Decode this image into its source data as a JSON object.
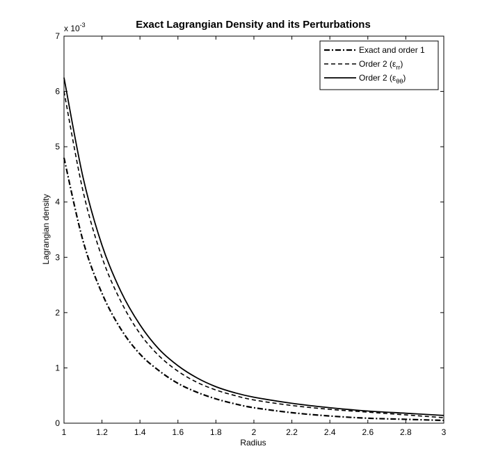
{
  "chart_data": {
    "type": "line",
    "title": "Exact Lagrangian Density and its Perturbations",
    "xlabel": "Radius",
    "ylabel": "Lagrangian density",
    "y_multiplier": "x 10",
    "y_multiplier_exponent": "-3",
    "xlim": [
      1,
      3
    ],
    "ylim": [
      0,
      7
    ],
    "xticks": [
      "1",
      "1.2",
      "1.4",
      "1.6",
      "1.8",
      "2",
      "2.2",
      "2.4",
      "2.6",
      "2.8",
      "3"
    ],
    "yticks": [
      "0",
      "1",
      "2",
      "3",
      "4",
      "5",
      "6",
      "7"
    ],
    "grid": false,
    "legend_position": "top-right",
    "x": [
      1.0,
      1.1,
      1.2,
      1.3,
      1.4,
      1.5,
      1.6,
      1.7,
      1.8,
      1.9,
      2.0,
      2.2,
      2.4,
      2.6,
      2.8,
      3.0
    ],
    "series": [
      {
        "name": "Exact and order 1",
        "name_sub": "",
        "dash": "dashdot",
        "values": [
          4.8,
          3.3,
          2.35,
          1.7,
          1.25,
          0.95,
          0.72,
          0.56,
          0.44,
          0.35,
          0.28,
          0.19,
          0.13,
          0.09,
          0.07,
          0.05
        ]
      },
      {
        "name": "Order 2 (ε",
        "name_sub": "rr",
        "name_suffix": ")",
        "dash": "dashed",
        "values": [
          6.0,
          4.2,
          3.0,
          2.2,
          1.62,
          1.22,
          0.94,
          0.74,
          0.6,
          0.5,
          0.42,
          0.32,
          0.25,
          0.2,
          0.15,
          0.1
        ]
      },
      {
        "name": "Order 2 (ε",
        "name_sub": "θθ",
        "name_suffix": ")",
        "dash": "solid",
        "values": [
          6.25,
          4.45,
          3.22,
          2.38,
          1.78,
          1.34,
          1.04,
          0.82,
          0.66,
          0.55,
          0.47,
          0.36,
          0.28,
          0.22,
          0.18,
          0.14
        ]
      }
    ]
  }
}
